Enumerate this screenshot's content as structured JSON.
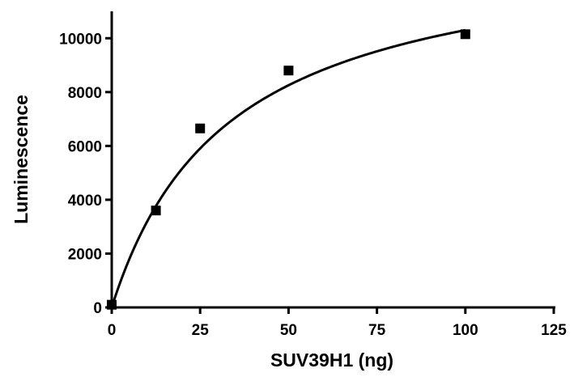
{
  "chart_data": {
    "type": "scatter",
    "xlabel": "SUV39H1 (ng)",
    "ylabel": "Luminescence",
    "xlim": [
      0,
      125
    ],
    "ylim": [
      0,
      11000
    ],
    "x_ticks": [
      0,
      25,
      50,
      75,
      100,
      125
    ],
    "y_ticks": [
      0,
      2000,
      4000,
      6000,
      8000,
      10000
    ],
    "x_tick_labels": [
      "0",
      "25",
      "50",
      "75",
      "100",
      "125"
    ],
    "y_tick_labels": [
      "0",
      "2000",
      "4000",
      "6000",
      "8000",
      "10000"
    ],
    "grid": false,
    "legend": "none",
    "series": [
      {
        "marker": "square",
        "color": "#000000",
        "points": [
          {
            "x": 0,
            "y": 100
          },
          {
            "x": 12.5,
            "y": 3600
          },
          {
            "x": 25,
            "y": 6650
          },
          {
            "x": 50,
            "y": 8800
          },
          {
            "x": 100,
            "y": 10150
          }
        ]
      }
    ],
    "fit_curve": {
      "model": "hyperbolic",
      "bmax": 13700,
      "kd": 33,
      "x_range": [
        0,
        100
      ],
      "color": "#000000"
    }
  }
}
